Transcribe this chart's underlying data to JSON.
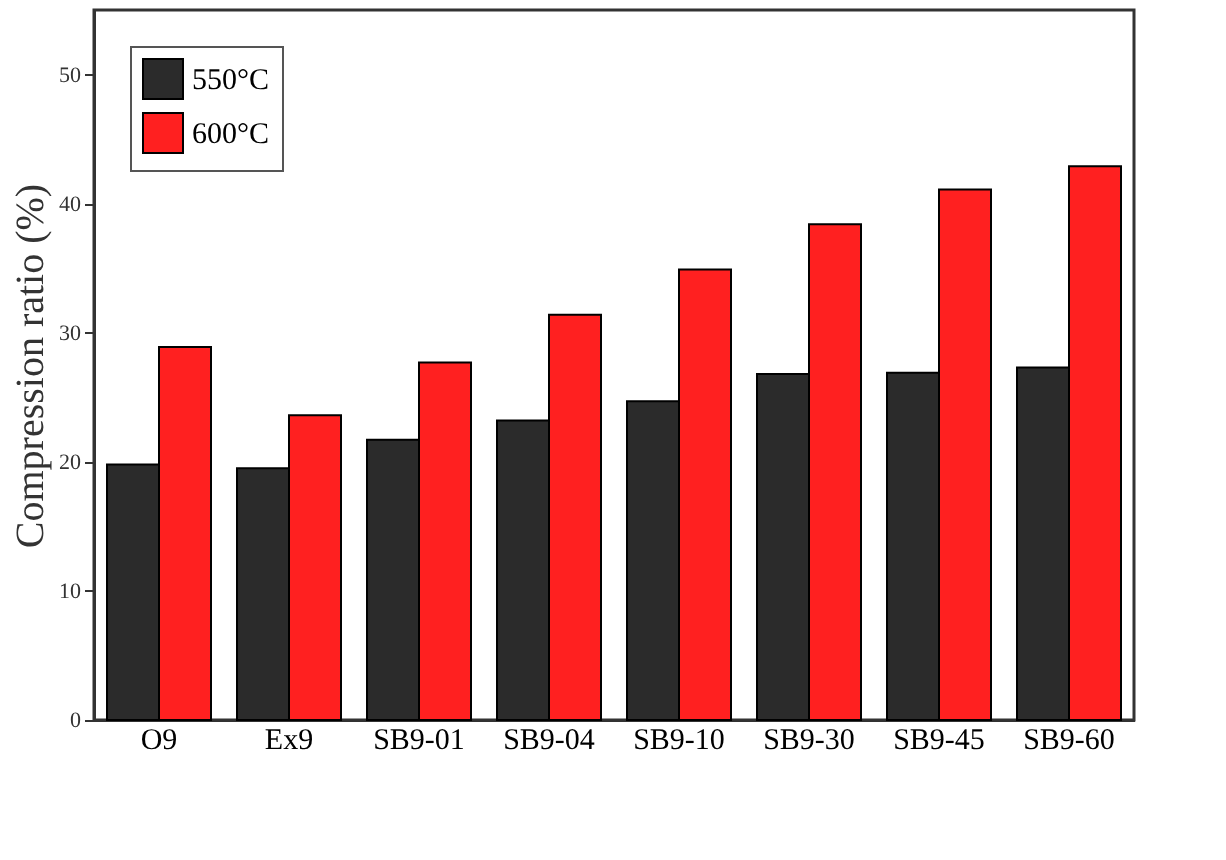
{
  "chart_data": {
    "type": "bar",
    "ylabel": "Compression ratio (%)",
    "categories": [
      "O9",
      "Ex9",
      "SB9-01",
      "SB9-04",
      "SB9-10",
      "SB9-30",
      "SB9-45",
      "SB9-60"
    ],
    "series": [
      {
        "name": "550°C",
        "color": "#2b2b2b",
        "values": [
          19.8,
          19.5,
          21.7,
          23.2,
          24.7,
          26.8,
          26.9,
          27.3
        ]
      },
      {
        "name": "600°C",
        "color": "#ff2020",
        "values": [
          28.9,
          23.6,
          27.7,
          31.4,
          34.9,
          38.4,
          41.1,
          42.9
        ]
      }
    ],
    "ylim": [
      0,
      55
    ],
    "yticks": [
      0,
      10,
      20,
      30,
      40,
      50
    ],
    "grid": false,
    "legend": "top left"
  }
}
